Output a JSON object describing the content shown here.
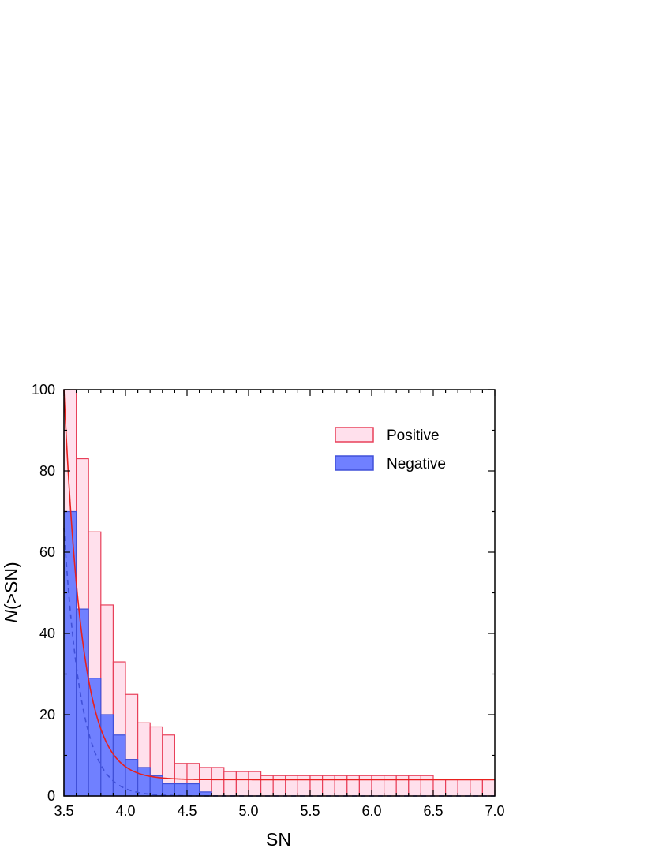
{
  "chart_data": {
    "type": "bar",
    "title": "",
    "xlabel": "SN",
    "ylabel_italic": "N",
    "ylabel_rest": "(>SN)",
    "xlim": [
      3.5,
      7.0
    ],
    "ylim": [
      0,
      100
    ],
    "xticks": [
      "3.5",
      "4.0",
      "4.5",
      "5.0",
      "5.5",
      "6.0",
      "6.5",
      "7.0"
    ],
    "yticks": [
      "0",
      "20",
      "40",
      "60",
      "80",
      "100"
    ],
    "bin_width": 0.1,
    "bin_starts": [
      3.5,
      3.6,
      3.7,
      3.8,
      3.9,
      4.0,
      4.1,
      4.2,
      4.3,
      4.4,
      4.5,
      4.6,
      4.7,
      4.8,
      4.9,
      5.0,
      5.1,
      5.2,
      5.3,
      5.4,
      5.5,
      5.6,
      5.7,
      5.8,
      5.9,
      6.0,
      6.1,
      6.2,
      6.3,
      6.4,
      6.5,
      6.6,
      6.7,
      6.8,
      6.9
    ],
    "series": [
      {
        "name": "Positive",
        "fill": "#ffe0ec",
        "stroke": "#e8405a",
        "values": [
          100,
          83,
          65,
          47,
          33,
          25,
          18,
          17,
          15,
          8,
          8,
          7,
          7,
          6,
          6,
          6,
          5,
          5,
          5,
          5,
          5,
          5,
          5,
          5,
          5,
          5,
          5,
          5,
          5,
          5,
          4,
          4,
          4,
          4,
          4
        ]
      },
      {
        "name": "Negative",
        "fill": "#7080ff",
        "stroke": "#4050d8",
        "values": [
          70,
          46,
          29,
          20,
          15,
          9,
          7,
          5,
          3,
          3,
          3,
          1,
          0,
          0,
          0,
          0,
          0,
          0,
          0,
          0,
          0,
          0,
          0,
          0,
          0,
          0,
          0,
          0,
          0,
          0,
          0,
          0,
          0,
          0,
          0
        ]
      }
    ],
    "fits": [
      {
        "series": "Positive",
        "style": "solid",
        "color": "#e8201e",
        "amplitude": 96,
        "decay": 6.8,
        "offset": 4
      },
      {
        "series": "Negative",
        "style": "dashed",
        "color": "#4050d8",
        "amplitude": 66,
        "decay": 7.2,
        "offset": 0
      }
    ],
    "legend_position": "top-right",
    "grid": false
  }
}
